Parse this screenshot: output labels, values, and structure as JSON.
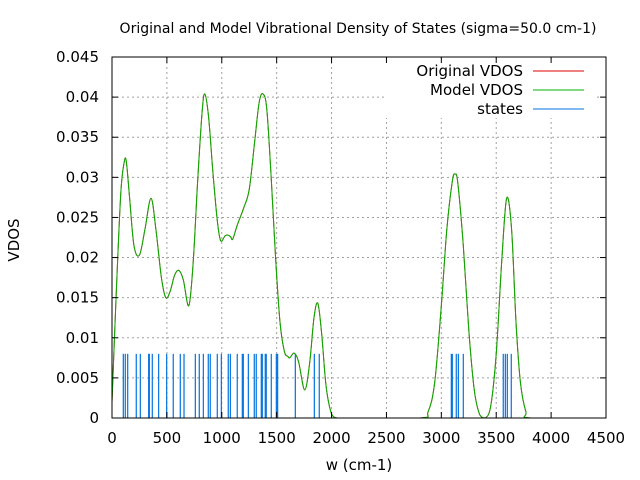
{
  "chart_data": {
    "type": "line",
    "title": "Original and Model Vibrational Density of States (sigma=50.0 cm-1)",
    "xlabel": "w (cm-1)",
    "ylabel": "VDOS",
    "xlim": [
      0,
      4500
    ],
    "ylim": [
      0,
      0.045
    ],
    "grid": true,
    "legend_position": "top-right",
    "xticks": [
      0,
      500,
      1000,
      1500,
      2000,
      2500,
      3000,
      3500,
      4000,
      4500
    ],
    "xtick_labels": [
      "0",
      "500",
      "1000",
      "1500",
      "2000",
      "2500",
      "3000",
      "3500",
      "4000",
      "4500"
    ],
    "yticks": [
      0,
      0.005,
      0.01,
      0.015,
      0.02,
      0.025,
      0.03,
      0.035,
      0.04,
      0.045
    ],
    "ytick_labels": [
      "0",
      "0.005",
      "0.01",
      "0.015",
      "0.02",
      "0.025",
      "0.03",
      "0.035",
      "0.04",
      "0.045"
    ],
    "series": [
      {
        "name": "Original VDOS",
        "color": "#e00000",
        "x": [
          0,
          40,
          80,
          110,
          130,
          160,
          200,
          250,
          300,
          355,
          400,
          450,
          490,
          530,
          570,
          610,
          650,
          700,
          740,
          780,
          820,
          845,
          880,
          920,
          960,
          990,
          1030,
          1055,
          1080,
          1100,
          1140,
          1200,
          1250,
          1300,
          1340,
          1375,
          1410,
          1450,
          1490,
          1530,
          1570,
          1600,
          1620,
          1660,
          1700,
          1755,
          1800,
          1840,
          1875,
          1910,
          1950,
          2000,
          2050,
          2100,
          2800,
          2880,
          2940,
          3000,
          3050,
          3100,
          3125,
          3150,
          3200,
          3250,
          3300,
          3350,
          3400,
          3450,
          3500,
          3550,
          3595,
          3640,
          3680,
          3720,
          3770,
          3820,
          4500
        ],
        "y": [
          0.002,
          0.016,
          0.028,
          0.0318,
          0.032,
          0.0275,
          0.0215,
          0.0203,
          0.0235,
          0.0274,
          0.0235,
          0.0175,
          0.015,
          0.0158,
          0.0178,
          0.0184,
          0.0172,
          0.014,
          0.0195,
          0.0295,
          0.038,
          0.0404,
          0.0375,
          0.0305,
          0.0245,
          0.0221,
          0.0227,
          0.0228,
          0.0226,
          0.0223,
          0.024,
          0.0262,
          0.0285,
          0.0345,
          0.0393,
          0.0404,
          0.0385,
          0.03,
          0.02,
          0.012,
          0.0083,
          0.0077,
          0.0075,
          0.0081,
          0.007,
          0.0035,
          0.0068,
          0.0125,
          0.0143,
          0.0105,
          0.004,
          0.0005,
          0.0,
          0.0,
          0.0,
          0.0008,
          0.0045,
          0.014,
          0.0235,
          0.0295,
          0.0304,
          0.0293,
          0.0215,
          0.011,
          0.0035,
          0.0004,
          0.0,
          0.0015,
          0.008,
          0.0195,
          0.0274,
          0.0235,
          0.012,
          0.0045,
          0.0008,
          0.0,
          0.0
        ]
      },
      {
        "name": "Model VDOS",
        "color": "#00b000",
        "x": [
          0,
          40,
          80,
          110,
          130,
          160,
          200,
          250,
          300,
          355,
          400,
          450,
          490,
          530,
          570,
          610,
          650,
          700,
          740,
          780,
          820,
          845,
          880,
          920,
          960,
          990,
          1030,
          1055,
          1080,
          1100,
          1140,
          1200,
          1250,
          1300,
          1340,
          1375,
          1410,
          1450,
          1490,
          1530,
          1570,
          1600,
          1620,
          1660,
          1700,
          1755,
          1800,
          1840,
          1875,
          1910,
          1950,
          2000,
          2050,
          2100,
          2800,
          2880,
          2940,
          3000,
          3050,
          3100,
          3125,
          3150,
          3200,
          3250,
          3300,
          3350,
          3400,
          3450,
          3500,
          3550,
          3595,
          3640,
          3680,
          3720,
          3770,
          3820,
          4500
        ],
        "y": [
          0.002,
          0.016,
          0.028,
          0.0318,
          0.032,
          0.0275,
          0.0215,
          0.0203,
          0.0235,
          0.0274,
          0.0235,
          0.0175,
          0.015,
          0.0158,
          0.0178,
          0.0184,
          0.0172,
          0.014,
          0.0195,
          0.0295,
          0.038,
          0.0404,
          0.0375,
          0.0305,
          0.0245,
          0.0221,
          0.0227,
          0.0228,
          0.0226,
          0.0223,
          0.024,
          0.0262,
          0.0285,
          0.0345,
          0.0393,
          0.0404,
          0.0385,
          0.03,
          0.02,
          0.012,
          0.0083,
          0.0077,
          0.0075,
          0.0081,
          0.007,
          0.0035,
          0.0068,
          0.0125,
          0.0143,
          0.0105,
          0.004,
          0.0005,
          0.0,
          0.0,
          0.0,
          0.0008,
          0.0045,
          0.014,
          0.0235,
          0.0295,
          0.0304,
          0.0293,
          0.0215,
          0.011,
          0.0035,
          0.0004,
          0.0,
          0.0015,
          0.008,
          0.0195,
          0.0274,
          0.0235,
          0.012,
          0.0045,
          0.0008,
          0.0,
          0.0
        ]
      },
      {
        "name": "states",
        "color": "#0072e0",
        "type": "impulses",
        "height": 0.008,
        "x": [
          103,
          121,
          143,
          221,
          258,
          334,
          340,
          367,
          425,
          498,
          558,
          622,
          656,
          759,
          795,
          832,
          877,
          895,
          959,
          996,
          1059,
          1078,
          1141,
          1187,
          1196,
          1242,
          1296,
          1314,
          1360,
          1369,
          1396,
          1405,
          1451,
          1497,
          1509,
          1670,
          1843,
          1888,
          3091,
          3100,
          3136,
          3155,
          3200,
          3564,
          3583,
          3601,
          3637
        ]
      }
    ]
  }
}
